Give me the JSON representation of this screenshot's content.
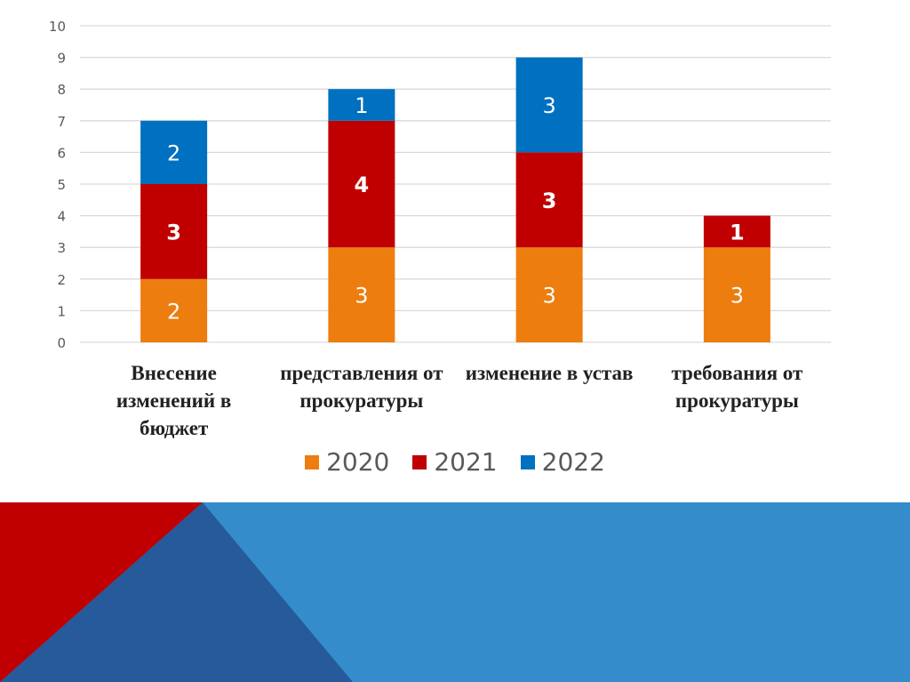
{
  "chart_data": {
    "type": "bar",
    "stacked": true,
    "title": "",
    "xlabel": "",
    "ylabel": "",
    "ylim": [
      0,
      10
    ],
    "yticks": [
      0,
      1,
      2,
      3,
      4,
      5,
      6,
      7,
      8,
      9,
      10
    ],
    "grid": true,
    "legend_position": "bottom",
    "categories": [
      "Внесение изменений в бюджет",
      "представления от прокуратуры",
      "изменение в устав",
      "требования от прокуратуры"
    ],
    "series": [
      {
        "name": "2020",
        "color": "#ED7D0E",
        "values": [
          2,
          3,
          3,
          3
        ]
      },
      {
        "name": "2021",
        "color": "#C00000",
        "values": [
          3,
          4,
          3,
          1
        ]
      },
      {
        "name": "2022",
        "color": "#0070C0",
        "values": [
          2,
          1,
          3,
          null
        ]
      }
    ]
  },
  "decor": {
    "red": "#C00000",
    "dark_blue": "#265A9A",
    "light_blue": "#358CCB"
  }
}
